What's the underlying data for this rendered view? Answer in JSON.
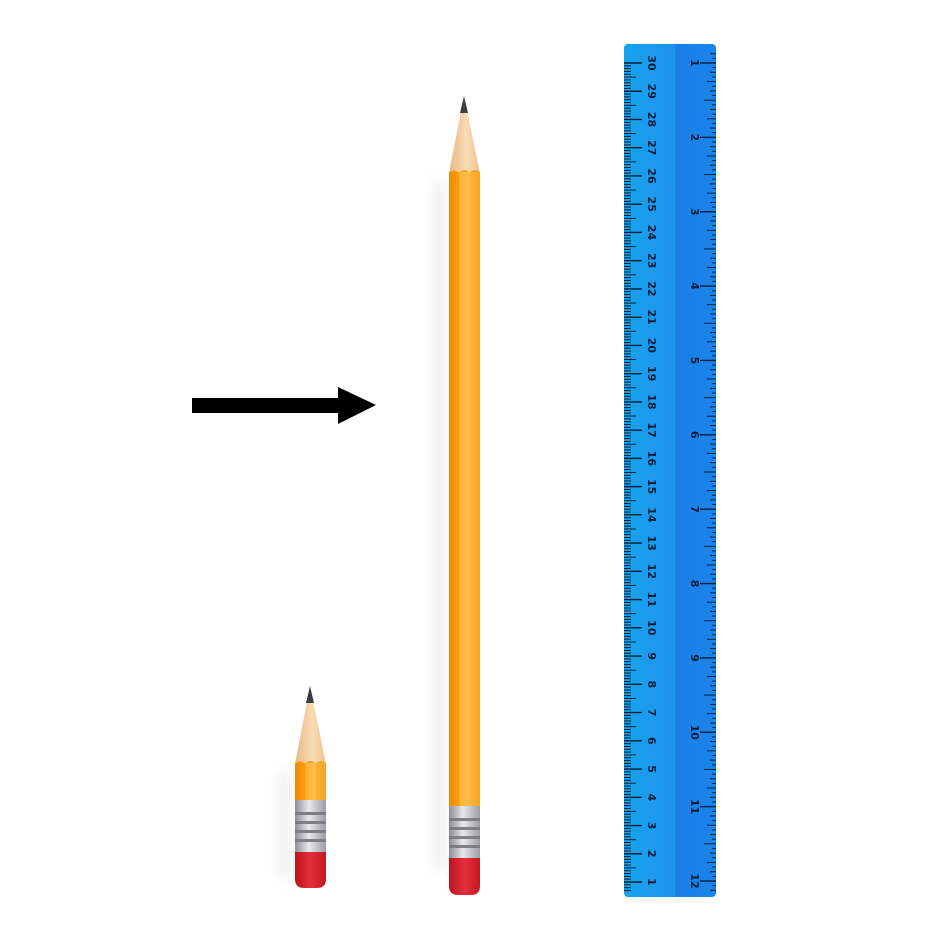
{
  "scene": {
    "background": "#ffffff",
    "arrow": {
      "icon": "right-arrow-icon",
      "color": "#000000"
    },
    "pencils": [
      {
        "name": "short-pencil",
        "wood_color": "#f7a21b",
        "eraser_color": "#d6232f",
        "ferrule_color": "#b9bcc0",
        "tip_color": "#f3d2a5",
        "lead_color": "#3d3d3d"
      },
      {
        "name": "long-pencil",
        "wood_color": "#f7a21b",
        "eraser_color": "#d6232f",
        "ferrule_color": "#b9bcc0",
        "tip_color": "#f3d2a5",
        "lead_color": "#3d3d3d"
      }
    ]
  },
  "ruler": {
    "color": "#1f8ef1",
    "edge_color": "#139de9",
    "tick_color": "#0a1f3a",
    "cm_labels": [
      "1",
      "2",
      "3",
      "4",
      "5",
      "6",
      "7",
      "8",
      "9",
      "10",
      "11",
      "12",
      "13",
      "14",
      "15",
      "16",
      "17",
      "18",
      "19",
      "20",
      "21",
      "22",
      "23",
      "24",
      "25",
      "26",
      "27",
      "28",
      "29",
      "30"
    ],
    "inch_labels": [
      "1",
      "2",
      "3",
      "4",
      "5",
      "6",
      "7",
      "8",
      "9",
      "10",
      "11",
      "12"
    ]
  }
}
